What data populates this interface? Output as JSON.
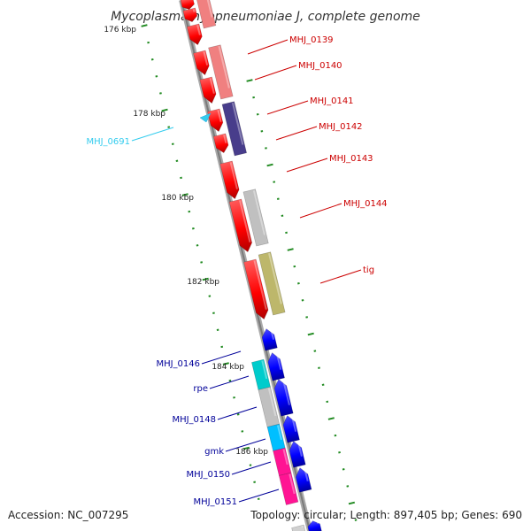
{
  "title": "Mycoplasma hyopneumoniae J, complete genome",
  "footer": {
    "accession": "Accession: NC_007295",
    "summary": "Topology: circular; Length: 897,405 bp; Genes: 690"
  },
  "colors": {
    "forward": "#ff0000",
    "forward_light": "#f08080",
    "reverse": "#0000ff",
    "purple": "#483d8b",
    "grey": "#c0c0c0",
    "khaki": "#bdb76b",
    "cyan": "#00cccc",
    "sky": "#00bfff",
    "pink": "#ff1493",
    "tick": "#228b22",
    "backbone": "#8a8a8a",
    "label_red": "#cc0000",
    "label_blue": "#000099",
    "label_cyan": "#33ccee"
  },
  "ticks": [
    {
      "label": "176 kbp"
    },
    {
      "label": "178 kbp"
    },
    {
      "label": "180 kbp"
    },
    {
      "label": "182 kbp"
    },
    {
      "label": "184 kbp"
    },
    {
      "label": "186 kbp"
    }
  ],
  "genes": [
    {
      "label": "MHJ_0139",
      "color": "label_red"
    },
    {
      "label": "MHJ_0140",
      "color": "label_red"
    },
    {
      "label": "MHJ_0141",
      "color": "label_red"
    },
    {
      "label": "MHJ_0142",
      "color": "label_red"
    },
    {
      "label": "MHJ_0143",
      "color": "label_red"
    },
    {
      "label": "MHJ_0144",
      "color": "label_red"
    },
    {
      "label": "tig",
      "color": "label_red"
    },
    {
      "label": "MHJ_0691",
      "color": "label_cyan"
    },
    {
      "label": "MHJ_0146",
      "color": "label_blue"
    },
    {
      "label": "rpe",
      "color": "label_blue"
    },
    {
      "label": "MHJ_0148",
      "color": "label_blue"
    },
    {
      "label": "gmk",
      "color": "label_blue"
    },
    {
      "label": "MHJ_0150",
      "color": "label_blue"
    },
    {
      "label": "MHJ_0151",
      "color": "label_blue"
    }
  ]
}
